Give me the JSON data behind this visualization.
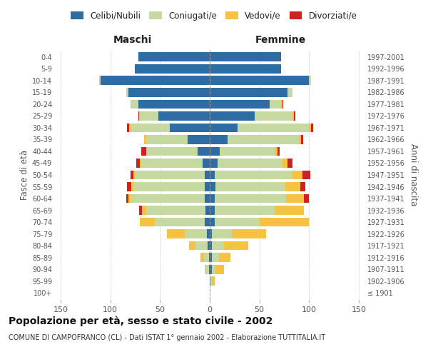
{
  "age_groups": [
    "100+",
    "95-99",
    "90-94",
    "85-89",
    "80-84",
    "75-79",
    "70-74",
    "65-69",
    "60-64",
    "55-59",
    "50-54",
    "45-49",
    "40-44",
    "35-39",
    "30-34",
    "25-29",
    "20-24",
    "15-19",
    "10-14",
    "5-9",
    "0-4"
  ],
  "birth_years": [
    "≤ 1901",
    "1902-1906",
    "1907-1911",
    "1912-1916",
    "1917-1921",
    "1922-1926",
    "1927-1931",
    "1932-1936",
    "1937-1941",
    "1942-1946",
    "1947-1951",
    "1952-1956",
    "1957-1961",
    "1962-1966",
    "1967-1971",
    "1972-1976",
    "1977-1981",
    "1982-1986",
    "1987-1991",
    "1992-1996",
    "1997-2001"
  ],
  "maschi": {
    "celibi": [
      0,
      0,
      1,
      1,
      2,
      3,
      5,
      4,
      5,
      5,
      5,
      7,
      12,
      22,
      40,
      52,
      72,
      82,
      110,
      75,
      72
    ],
    "coniugati": [
      0,
      0,
      3,
      5,
      12,
      22,
      50,
      60,
      75,
      72,
      70,
      62,
      52,
      42,
      40,
      18,
      7,
      2,
      1,
      0,
      0
    ],
    "vedovi": [
      0,
      0,
      1,
      3,
      7,
      18,
      15,
      4,
      2,
      2,
      2,
      1,
      0,
      2,
      1,
      1,
      1,
      0,
      0,
      0,
      0
    ],
    "divorziati": [
      0,
      0,
      0,
      0,
      0,
      0,
      0,
      3,
      2,
      4,
      3,
      4,
      5,
      0,
      2,
      1,
      0,
      0,
      0,
      0,
      0
    ]
  },
  "femmine": {
    "nubili": [
      0,
      1,
      2,
      2,
      2,
      2,
      5,
      5,
      5,
      6,
      5,
      8,
      10,
      18,
      28,
      45,
      60,
      78,
      100,
      72,
      72
    ],
    "coniugate": [
      0,
      1,
      4,
      7,
      12,
      20,
      45,
      60,
      72,
      70,
      78,
      65,
      55,
      72,
      72,
      38,
      12,
      5,
      2,
      0,
      0
    ],
    "vedove": [
      0,
      3,
      8,
      12,
      25,
      35,
      50,
      30,
      18,
      15,
      10,
      5,
      3,
      2,
      2,
      2,
      1,
      0,
      0,
      0,
      0
    ],
    "divorziate": [
      0,
      0,
      0,
      0,
      0,
      0,
      0,
      0,
      5,
      5,
      8,
      5,
      2,
      2,
      2,
      1,
      1,
      0,
      0,
      0,
      0
    ]
  },
  "colors": {
    "celibi": "#2e6da4",
    "coniugati": "#c5d9a0",
    "vedovi": "#f5c242",
    "divorziati": "#cc2222"
  },
  "title": "Popolazione per età, sesso e stato civile - 2002",
  "subtitle": "COMUNE DI CAMPOFRANCO (CL) - Dati ISTAT 1° gennaio 2002 - Elaborazione TUTTITALIA.IT",
  "xlabel_left": "Maschi",
  "xlabel_right": "Femmine",
  "ylabel_left": "Fasce di età",
  "ylabel_right": "Anni di nascita",
  "xlim": 155,
  "bg_color": "#ffffff",
  "grid_color": "#cccccc"
}
